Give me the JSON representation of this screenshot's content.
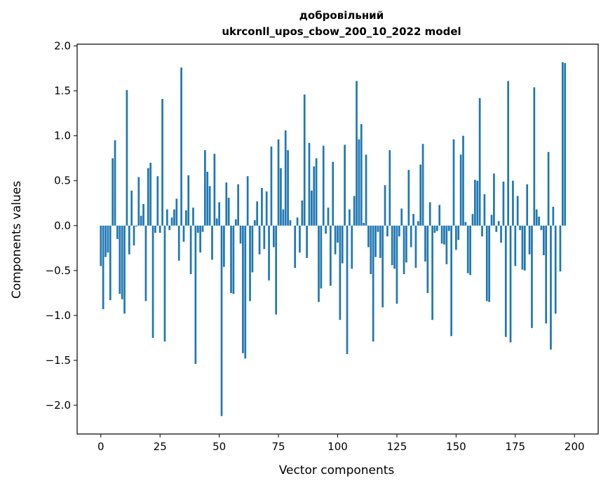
{
  "chart_data": {
    "type": "bar",
    "title": [
      "добровільний",
      "ukrconll_upos_cbow_200_10_2022 model"
    ],
    "xlabel": "Vector components",
    "ylabel": "Components values",
    "xlim": [
      -10,
      210
    ],
    "ylim": [
      -2.32,
      2.02
    ],
    "xticks": [
      0,
      25,
      50,
      75,
      100,
      125,
      150,
      175,
      200
    ],
    "yticks": [
      -2.0,
      -1.5,
      -1.0,
      -0.5,
      0.0,
      0.5,
      1.0,
      1.5,
      2.0
    ],
    "ytick_labels": [
      "−2.0",
      "−1.5",
      "−1.0",
      "−0.5",
      "0.0",
      "0.5",
      "1.0",
      "1.5",
      "2.0"
    ],
    "bar_color": "#1f77b4",
    "grid": false,
    "legend": "none",
    "values": [
      -0.45,
      -0.93,
      -0.35,
      -0.3,
      -0.83,
      0.75,
      0.95,
      -0.15,
      -0.76,
      -0.82,
      -0.98,
      1.51,
      -0.32,
      0.39,
      -0.22,
      -0.01,
      0.54,
      0.11,
      0.24,
      -0.84,
      0.64,
      0.7,
      -1.25,
      -0.08,
      0.55,
      -0.08,
      1.41,
      -1.29,
      0.18,
      -0.05,
      0.09,
      0.18,
      0.3,
      -0.39,
      1.76,
      -0.18,
      0.17,
      0.56,
      -0.54,
      0.2,
      -1.54,
      -0.08,
      -0.3,
      -0.07,
      0.84,
      0.6,
      0.44,
      -0.38,
      0.8,
      0.08,
      0.26,
      -2.12,
      -0.46,
      0.48,
      0.31,
      -0.75,
      -0.76,
      0.07,
      0.46,
      -0.2,
      -1.42,
      -1.48,
      0.55,
      -0.84,
      -0.52,
      0.06,
      0.27,
      -0.32,
      0.42,
      -0.26,
      0.38,
      -0.61,
      0.88,
      -0.24,
      -0.99,
      0.96,
      0.64,
      0.18,
      1.06,
      0.84,
      0.06,
      0.0,
      -0.47,
      0.09,
      -0.3,
      0.28,
      1.46,
      -0.36,
      0.92,
      0.39,
      0.66,
      0.75,
      -0.85,
      -0.7,
      0.89,
      -0.09,
      0.2,
      -0.67,
      0.71,
      -0.32,
      -0.19,
      -1.05,
      -0.42,
      0.9,
      -1.43,
      0.18,
      -0.48,
      0.33,
      1.61,
      0.96,
      1.13,
      0.03,
      0.79,
      -0.24,
      -0.54,
      -1.29,
      -0.35,
      -0.07,
      -0.36,
      -0.91,
      0.45,
      -0.12,
      0.84,
      -0.44,
      -0.48,
      -0.87,
      -0.12,
      0.19,
      -0.54,
      -0.41,
      0.62,
      -0.24,
      0.13,
      -0.47,
      0.05,
      0.68,
      0.91,
      -0.4,
      -0.75,
      0.26,
      -1.05,
      -0.08,
      -0.06,
      0.23,
      -0.2,
      -0.21,
      -0.43,
      -0.06,
      -1.23,
      0.96,
      -0.27,
      -0.16,
      0.79,
      1.0,
      0.04,
      -0.53,
      -0.55,
      0.13,
      0.51,
      0.5,
      1.42,
      -0.12,
      0.35,
      -0.84,
      -0.85,
      0.12,
      0.58,
      -0.07,
      0.05,
      -0.19,
      0.49,
      -1.24,
      1.61,
      -1.3,
      0.5,
      -0.45,
      0.33,
      -0.05,
      -0.49,
      -0.5,
      0.46,
      -0.32,
      -1.14,
      1.54,
      0.18,
      0.1,
      -0.05,
      -0.33,
      -1.09,
      0.82,
      -1.38,
      0.21,
      -0.98,
      0.0,
      -0.51,
      1.82,
      1.81
    ]
  }
}
